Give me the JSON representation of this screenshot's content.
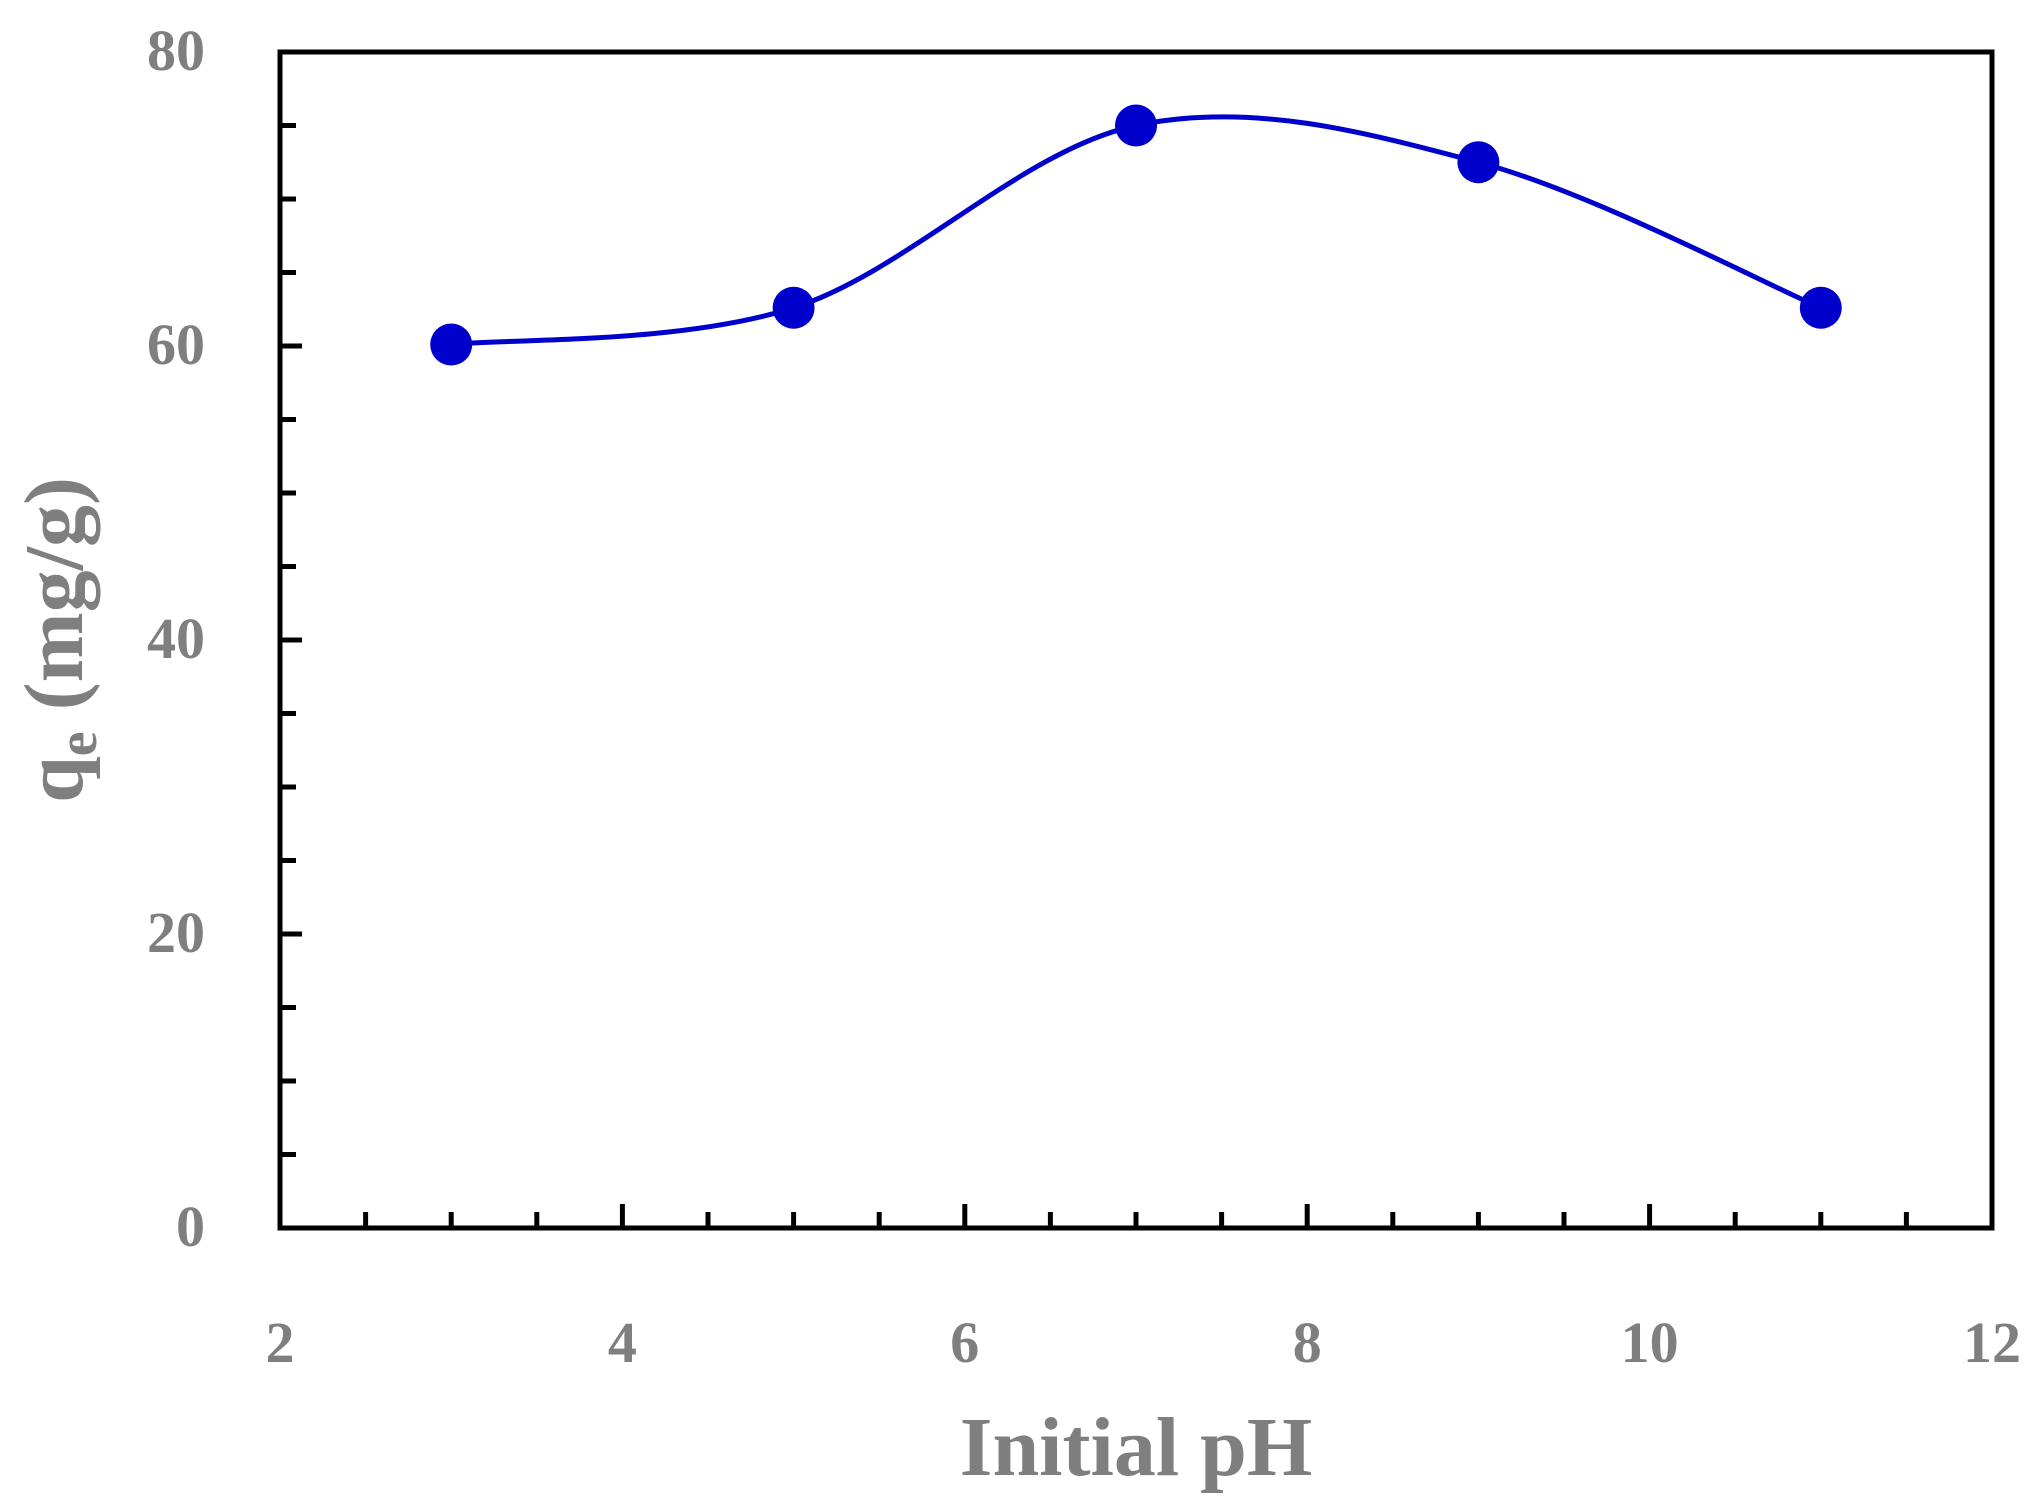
{
  "chart_data": {
    "type": "line",
    "title": "",
    "xlabel": "Initial pH",
    "ylabel": {
      "main": "q",
      "subscript": "e",
      "unit": " (mg/g)"
    },
    "xlim": [
      2,
      12
    ],
    "ylim": [
      0,
      80
    ],
    "x_ticks": [
      2,
      4,
      6,
      8,
      10,
      12
    ],
    "x_tick_labels": [
      "2",
      "4",
      "6",
      "8",
      "10",
      "12"
    ],
    "x_minor_step": 0.5,
    "y_ticks": [
      0,
      20,
      40,
      60,
      80
    ],
    "y_tick_labels": [
      "0",
      "20",
      "40",
      "60",
      "80"
    ],
    "y_minor_step": 5,
    "grid": false,
    "legend": "none",
    "smooth": true,
    "series": [
      {
        "color": "#0000cc",
        "marker": "circle",
        "x": [
          3,
          5,
          7,
          9,
          11
        ],
        "y": [
          60.1,
          62.6,
          75.0,
          72.5,
          62.6
        ]
      }
    ]
  }
}
